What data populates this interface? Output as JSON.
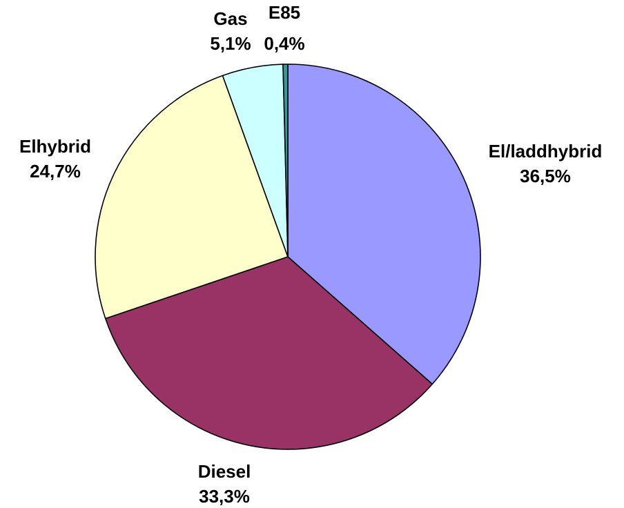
{
  "chart_data": {
    "type": "pie",
    "title": "",
    "categories": [
      "El/laddhybrid",
      "Diesel",
      "Elhybrid",
      "Gas",
      "E85"
    ],
    "values": [
      36.5,
      33.3,
      24.7,
      5.1,
      0.4
    ],
    "value_labels": [
      "36,5%",
      "33,3%",
      "24,7%",
      "5,1%",
      "0,4%"
    ],
    "colors": [
      "#9999FF",
      "#993366",
      "#FFFFCC",
      "#CCFFFF",
      "#339999"
    ],
    "start_angle": "12 o'clock",
    "direction": "clockwise",
    "legend": "none",
    "labels_position": "outside"
  }
}
